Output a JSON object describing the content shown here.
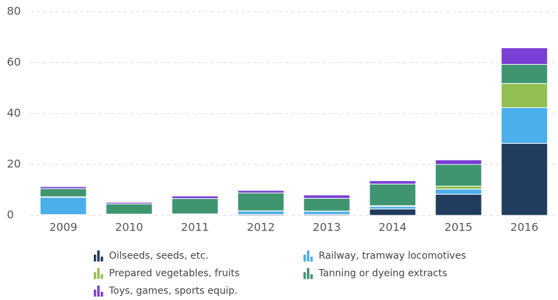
{
  "chart_data": {
    "type": "stacked_bar",
    "categories": [
      "2009",
      "2010",
      "2011",
      "2012",
      "2013",
      "2014",
      "2015",
      "2016"
    ],
    "series": [
      {
        "name": "Oilseeds, seeds, etc.",
        "color": "#213d5e",
        "values": [
          0.3,
          0.2,
          0.2,
          0.4,
          0.4,
          2.5,
          8.3,
          28.3
        ]
      },
      {
        "name": "Railway, tramway locomotives",
        "color": "#4aaeea",
        "values": [
          6.8,
          0.2,
          0.3,
          1.3,
          1.2,
          1.0,
          2.0,
          14.0
        ]
      },
      {
        "name": "Prepared vegetables, fruits",
        "color": "#93bf52",
        "values": [
          0.2,
          0.1,
          0.1,
          0.1,
          0.1,
          0.3,
          1.2,
          9.5
        ]
      },
      {
        "name": "Tanning or dyeing extracts",
        "color": "#3f9570",
        "values": [
          3.2,
          4.0,
          6.0,
          7.0,
          5.0,
          8.5,
          8.5,
          7.5
        ]
      },
      {
        "name": "Toys, games, sports equip.",
        "color": "#7a3fd4",
        "values": [
          0.8,
          0.6,
          1.0,
          1.0,
          1.3,
          1.3,
          1.8,
          6.5
        ]
      }
    ],
    "ylim": [
      0,
      80
    ],
    "yticks": [
      0,
      20,
      40,
      60,
      80
    ],
    "grid": true
  }
}
